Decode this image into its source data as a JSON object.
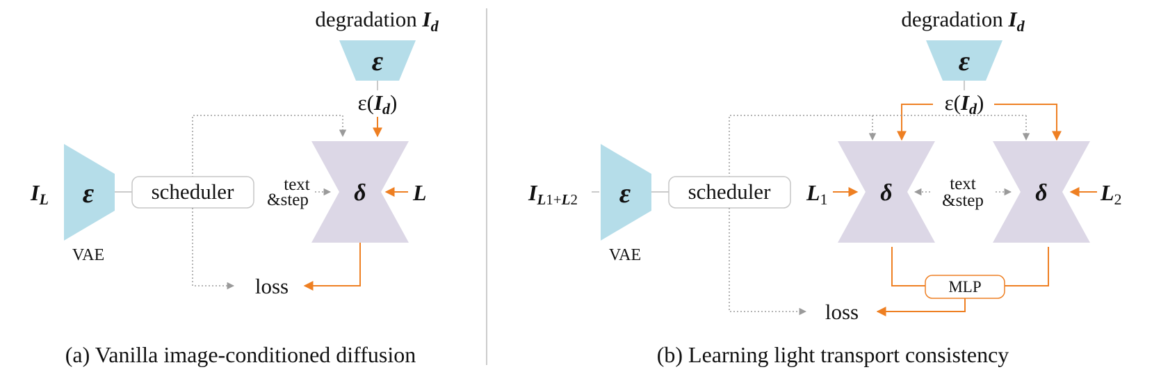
{
  "colors": {
    "encoder": "#b5dde9",
    "denoiser": "#dcd7e6",
    "orange": "#ee7f22",
    "gray_line": "#b9b9b9",
    "gray_dots": "#9a9a9a",
    "box_border": "#c6c6c6",
    "text": "#111111"
  },
  "left": {
    "degradation_word": "degradation",
    "degradation_sym": "I",
    "degradation_sub": "d",
    "encoder_sym": "ε",
    "enc_out_pre": "ε(",
    "enc_out_sym": "I",
    "enc_out_sub": "d",
    "enc_out_post": ")",
    "input_sym": "I",
    "input_sub": "L",
    "vae_encoder_sym": "ε",
    "vae_label": "VAE",
    "scheduler_label": "scheduler",
    "text_line1": "text",
    "text_line2": "&step",
    "denoiser_sym": "δ",
    "light_sym": "L",
    "loss_label": "loss",
    "caption": "(a) Vanilla image-conditioned diffusion"
  },
  "right": {
    "degradation_word": "degradation",
    "degradation_sym": "I",
    "degradation_sub": "d",
    "encoder_sym": "ε",
    "enc_out_pre": "ε(",
    "enc_out_sym": "I",
    "enc_out_sub": "d",
    "enc_out_post": ")",
    "input_sym": "I",
    "input_sub1": "L",
    "input_sub2": "1+",
    "input_sub3": "L",
    "input_sub4": "2",
    "vae_encoder_sym": "ε",
    "vae_label": "VAE",
    "scheduler_label": "scheduler",
    "light1_sym": "L",
    "light1_sub": "1",
    "denoiser1_sym": "δ",
    "text_line1": "text",
    "text_line2": "&step",
    "denoiser2_sym": "δ",
    "light2_sym": "L",
    "light2_sub": "2",
    "mlp_label": "MLP",
    "loss_label": "loss",
    "caption": "(b) Learning light transport consistency"
  }
}
